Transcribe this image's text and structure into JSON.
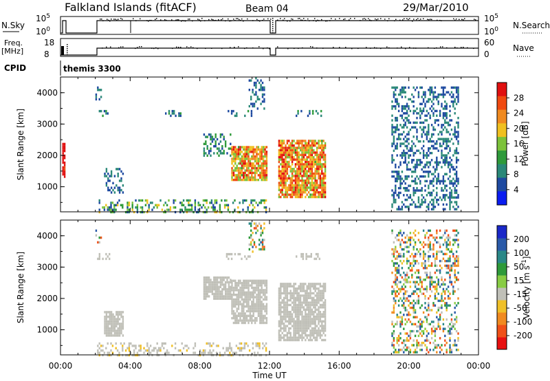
{
  "header": {
    "station": "Falkland Islands (fitACF)",
    "beam": "Beam 04",
    "date": "29/Mar/2010"
  },
  "panels": {
    "nsky": {
      "label": "N.Sky",
      "tick_top": "10^5",
      "tick_bottom": "10^0",
      "right_label": "N.Search",
      "right_tick_top": "10^5",
      "right_tick_bottom": "10^0"
    },
    "freq": {
      "label": "Freq.",
      "unit": "[MHz]",
      "tick_top": "18",
      "tick_bottom": "8",
      "right_label": "Nave",
      "right_tick_top": "60",
      "right_tick_bottom": "0"
    },
    "cpid": {
      "label": "CPID",
      "value": "themis 3300"
    }
  },
  "colors": {
    "power_scale": [
      "#0a1cf0",
      "#1e4aa0",
      "#2a8878",
      "#2e9a3a",
      "#7cc23a",
      "#f0c020",
      "#f08a20",
      "#f04a10",
      "#e01010"
    ],
    "velocity_scale": [
      "#e81010",
      "#f05018",
      "#f08a20",
      "#f0c028",
      "#c0c0b8",
      "#88cc44",
      "#2e9a3a",
      "#2a8888",
      "#2a5aa8",
      "#1a28c8"
    ],
    "ground_scatter": "#c0c0b8"
  },
  "chart_data": [
    {
      "type": "heatmap",
      "name": "power",
      "ylabel": "Slant Range [km]",
      "yticks": [
        "1000",
        "2000",
        "3000",
        "4000"
      ],
      "ylim": [
        200,
        4500
      ],
      "xlim_hours": [
        0,
        24
      ],
      "colorbar": {
        "label": "Power [dB]",
        "ticks": [
          "4",
          "8",
          "12",
          "16",
          "20",
          "24",
          "28"
        ],
        "range": [
          0,
          32
        ]
      },
      "regions": [
        {
          "t": [
            0.1,
            0.2
          ],
          "r": [
            1300,
            2400
          ],
          "v": [
            28,
            32
          ]
        },
        {
          "t": [
            2.0,
            2.3
          ],
          "r": [
            3800,
            4200
          ],
          "v": [
            4,
            10
          ]
        },
        {
          "t": [
            2.1,
            2.8
          ],
          "r": [
            3250,
            3450
          ],
          "v": [
            4,
            12
          ]
        },
        {
          "t": [
            2.5,
            3.6
          ],
          "r": [
            800,
            1600
          ],
          "v": [
            4,
            10
          ]
        },
        {
          "t": [
            2.0,
            11.8
          ],
          "r": [
            200,
            600
          ],
          "v": [
            4,
            20
          ]
        },
        {
          "t": [
            6.0,
            7.0
          ],
          "r": [
            3250,
            3450
          ],
          "v": [
            4,
            12
          ]
        },
        {
          "t": [
            8.2,
            9.8
          ],
          "r": [
            2000,
            2700
          ],
          "v": [
            4,
            14
          ]
        },
        {
          "t": [
            9.5,
            11.0
          ],
          "r": [
            3250,
            3450
          ],
          "v": [
            4,
            12
          ]
        },
        {
          "t": [
            9.8,
            11.8
          ],
          "r": [
            1200,
            2300
          ],
          "v": [
            14,
            30
          ]
        },
        {
          "t": [
            10.8,
            11.7
          ],
          "r": [
            3500,
            4500
          ],
          "v": [
            4,
            10
          ]
        },
        {
          "t": [
            12.5,
            15.2
          ],
          "r": [
            700,
            2500
          ],
          "v": [
            14,
            30
          ]
        },
        {
          "t": [
            13.5,
            15.0
          ],
          "r": [
            3250,
            3450
          ],
          "v": [
            4,
            12
          ]
        },
        {
          "t": [
            19.0,
            22.8
          ],
          "r": [
            300,
            4200
          ],
          "v": [
            4,
            10
          ]
        }
      ]
    },
    {
      "type": "heatmap",
      "name": "velocity",
      "ylabel": "Slant Range [km]",
      "xlabel": "Time UT",
      "xticks": [
        "00:00",
        "04:00",
        "08:00",
        "12:00",
        "16:00",
        "20:00",
        "00:00"
      ],
      "yticks": [
        "1000",
        "2000",
        "3000",
        "4000"
      ],
      "ylim": [
        200,
        4500
      ],
      "xlim_hours": [
        0,
        24
      ],
      "colorbar": {
        "label": "Velocity [m s^-1]",
        "ticks": [
          "-200",
          "-100",
          "-50",
          "-15",
          "15",
          "50",
          "100",
          "200"
        ],
        "range": [
          -250,
          250
        ]
      },
      "regions": [
        {
          "t": [
            2.0,
            2.3
          ],
          "r": [
            3800,
            4200
          ],
          "v": [
            -200,
            200
          ]
        },
        {
          "t": [
            2.1,
            2.8
          ],
          "r": [
            3250,
            3450
          ],
          "v": [
            -10,
            10
          ]
        },
        {
          "t": [
            2.5,
            3.6
          ],
          "r": [
            800,
            1600
          ],
          "v": [
            -10,
            10
          ]
        },
        {
          "t": [
            2.0,
            11.8
          ],
          "r": [
            200,
            600
          ],
          "v": [
            -60,
            -15
          ]
        },
        {
          "t": [
            8.2,
            9.8
          ],
          "r": [
            2000,
            2700
          ],
          "v": [
            -10,
            10
          ]
        },
        {
          "t": [
            9.5,
            11.0
          ],
          "r": [
            3250,
            3450
          ],
          "v": [
            -10,
            10
          ]
        },
        {
          "t": [
            9.8,
            11.8
          ],
          "r": [
            1200,
            2600
          ],
          "v": [
            -10,
            10
          ]
        },
        {
          "t": [
            10.8,
            11.7
          ],
          "r": [
            3500,
            4500
          ],
          "v": [
            -200,
            200
          ]
        },
        {
          "t": [
            12.5,
            15.2
          ],
          "r": [
            700,
            2500
          ],
          "v": [
            -10,
            10
          ]
        },
        {
          "t": [
            13.5,
            15.0
          ],
          "r": [
            3250,
            3450
          ],
          "v": [
            -10,
            10
          ]
        },
        {
          "t": [
            19.0,
            22.8
          ],
          "r": [
            300,
            4200
          ],
          "v": [
            -200,
            200
          ]
        }
      ]
    }
  ]
}
